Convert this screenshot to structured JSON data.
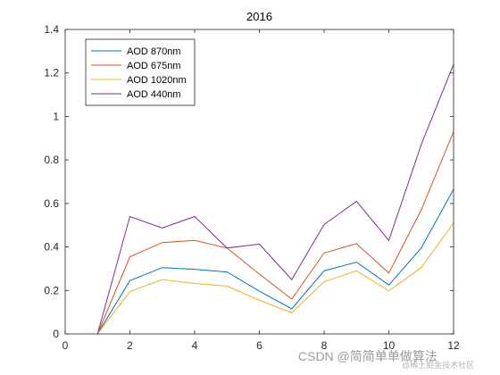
{
  "chart_data": {
    "type": "line",
    "title": "2016",
    "xlabel": "",
    "ylabel": "",
    "xlim": [
      0,
      12
    ],
    "ylim": [
      0,
      1.4
    ],
    "xticks": [
      0,
      2,
      4,
      6,
      8,
      10,
      12
    ],
    "yticks": [
      0,
      0.2,
      0.4,
      0.6,
      0.8,
      1,
      1.2,
      1.4
    ],
    "legend_position": "top-left",
    "grid": false,
    "x": [
      1,
      2,
      3,
      4,
      5,
      6,
      7,
      8,
      9,
      10,
      11,
      12
    ],
    "series": [
      {
        "name": "AOD 870nm",
        "color": "#0072BD",
        "values": [
          0,
          0.245,
          0.305,
          0.297,
          0.285,
          0.197,
          0.115,
          0.29,
          0.33,
          0.225,
          0.395,
          0.665
        ]
      },
      {
        "name": "AOD 675nm",
        "color": "#D95319",
        "values": [
          0,
          0.355,
          0.42,
          0.43,
          0.395,
          0.275,
          0.16,
          0.372,
          0.415,
          0.28,
          0.57,
          0.93
        ]
      },
      {
        "name": "AOD 1020nm",
        "color": "#EDB120",
        "values": [
          0,
          0.195,
          0.25,
          0.232,
          0.22,
          0.155,
          0.097,
          0.24,
          0.29,
          0.198,
          0.305,
          0.51
        ]
      },
      {
        "name": "AOD 440nm",
        "color": "#7E2F8E",
        "values": [
          0,
          0.54,
          0.487,
          0.54,
          0.395,
          0.413,
          0.25,
          0.503,
          0.61,
          0.43,
          0.87,
          1.24
        ]
      }
    ]
  },
  "watermark": {
    "main": "CSDN @简简单单做算法",
    "sub": "@稀土掘金技术社区"
  }
}
